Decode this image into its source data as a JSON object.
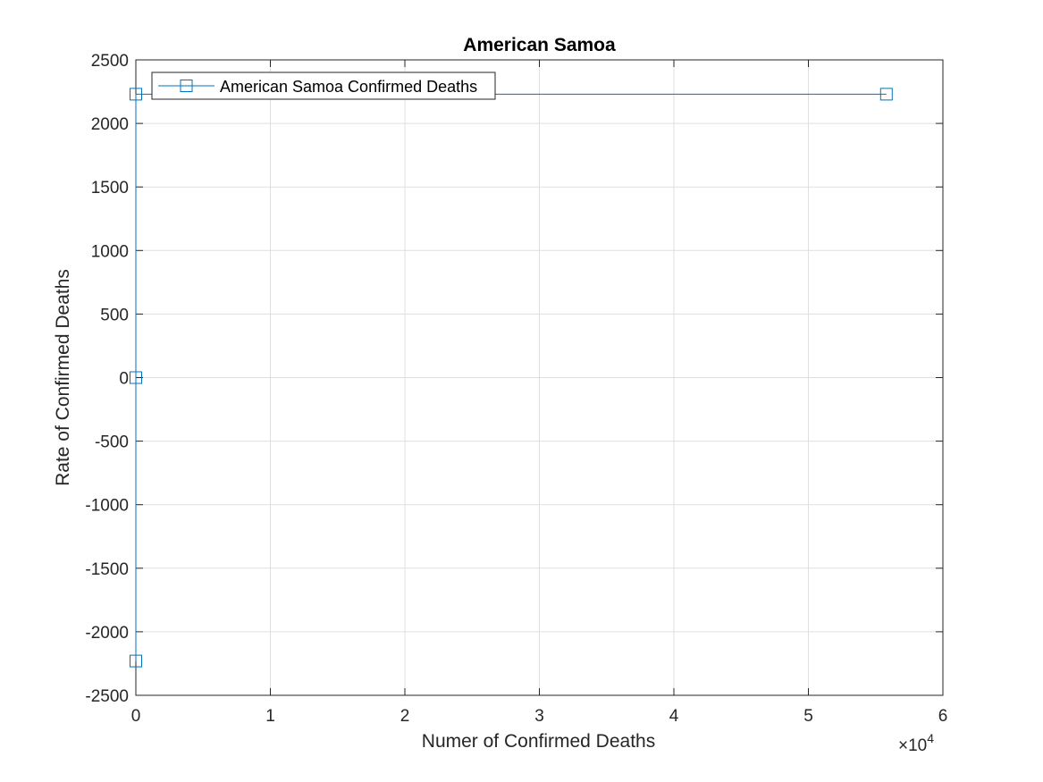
{
  "chart_data": {
    "type": "line",
    "title": "American Samoa",
    "xlabel": "Numer of Confirmed Deaths",
    "ylabel": "Rate of Confirmed Deaths",
    "xlim": [
      0,
      60000
    ],
    "ylim": [
      -2500,
      2500
    ],
    "x_exponent_base": "×10",
    "x_exponent_power": "4",
    "x_ticks": [
      0,
      10000,
      20000,
      30000,
      40000,
      50000,
      60000
    ],
    "x_tick_labels": [
      "0",
      "1",
      "2",
      "3",
      "4",
      "5",
      "6"
    ],
    "y_ticks": [
      -2500,
      -2000,
      -1500,
      -1000,
      -500,
      0,
      500,
      1000,
      1500,
      2000,
      2500
    ],
    "y_tick_labels": [
      "-2500",
      "-2000",
      "-1500",
      "-1000",
      "-500",
      "0",
      "500",
      "1000",
      "1500",
      "2000",
      "2500"
    ],
    "grid": true,
    "legend_position": "top-left",
    "series": [
      {
        "name": "American Samoa Confirmed Deaths",
        "color": "#0072BD",
        "marker": "square",
        "x": [
          0,
          0,
          0,
          55800
        ],
        "y": [
          -2230,
          0,
          2230,
          2230
        ]
      }
    ]
  }
}
